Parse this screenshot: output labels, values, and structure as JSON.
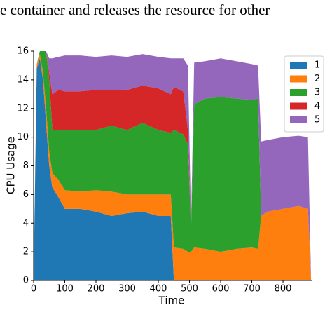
{
  "chart_data": {
    "type": "stackedarea",
    "caption": "e container and releases the resource for other",
    "x_label": "Time",
    "y_label": "CPU Usage",
    "x": [
      0,
      10,
      20,
      30,
      40,
      50,
      60,
      80,
      100,
      150,
      200,
      250,
      300,
      350,
      400,
      440,
      450,
      480,
      495,
      505,
      515,
      550,
      600,
      650,
      700,
      720,
      730,
      750,
      800,
      850,
      880,
      890
    ],
    "series": [
      {
        "name": "1",
        "color": "#1f77b4",
        "values": [
          0,
          14.8,
          15.5,
          14,
          11,
          8,
          6.5,
          5.8,
          5,
          5,
          4.8,
          4.5,
          4.7,
          4.8,
          4.5,
          4.5,
          0,
          0,
          0,
          0,
          0,
          0,
          0,
          0,
          0,
          0,
          0,
          0,
          0,
          0,
          0,
          0
        ]
      },
      {
        "name": "2",
        "color": "#ff7f0e",
        "values": [
          0,
          0.3,
          0.3,
          0.5,
          1,
          1,
          1,
          1.2,
          1.3,
          1.2,
          1.5,
          1.7,
          1.3,
          1.2,
          1.5,
          1.5,
          2.3,
          2.2,
          2,
          2,
          2.3,
          2.2,
          2,
          2.2,
          2.3,
          2.2,
          4.5,
          4.8,
          5,
          5.2,
          5,
          0
        ]
      },
      {
        "name": "3",
        "color": "#2ca02c",
        "values": [
          0,
          0,
          0.2,
          1.5,
          4,
          5,
          3,
          3.5,
          4.2,
          4.3,
          4.2,
          4.6,
          4.5,
          5,
          4.5,
          4.3,
          8.2,
          8,
          7.5,
          1.5,
          10,
          10.5,
          10.8,
          10.5,
          10.3,
          10.5,
          0,
          0,
          0,
          0,
          0,
          0
        ]
      },
      {
        "name": "4",
        "color": "#d62728",
        "values": [
          0,
          0,
          0,
          0,
          0,
          0.5,
          2.5,
          2.8,
          2.7,
          2.7,
          2.8,
          2.5,
          2.8,
          2.6,
          2.9,
          2.7,
          3,
          3,
          1,
          0,
          0,
          0,
          0,
          0,
          0,
          0,
          0,
          0,
          0,
          0,
          0,
          0
        ]
      },
      {
        "name": "5",
        "color": "#9467bd",
        "values": [
          0,
          0,
          0,
          0,
          0,
          1,
          2.5,
          2.3,
          2.5,
          2.5,
          2.3,
          2.4,
          2.3,
          2.2,
          2.2,
          2.5,
          2,
          2.3,
          4.5,
          0.5,
          2.9,
          2.6,
          2.7,
          2.6,
          2.5,
          2.3,
          5.2,
          5,
          5,
          4.9,
          5,
          0
        ]
      }
    ],
    "xlim": [
      0,
      892
    ],
    "ylim": [
      0,
      16
    ],
    "xticks": [
      0,
      100,
      200,
      300,
      400,
      500,
      600,
      700,
      800
    ],
    "yticks": [
      0,
      2,
      4,
      6,
      8,
      10,
      12,
      14,
      16
    ],
    "legend": "upper right"
  }
}
